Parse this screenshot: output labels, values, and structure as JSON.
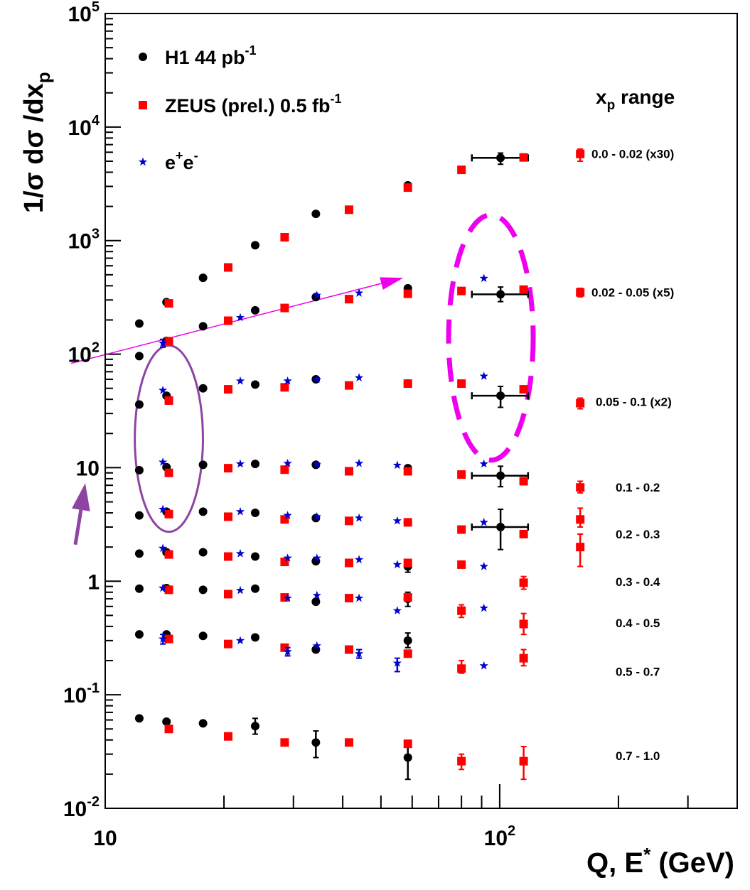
{
  "chart_data": {
    "type": "scatter",
    "log_x": true,
    "log_y": true,
    "xlim": [
      10,
      400
    ],
    "ylim": [
      0.01,
      100000
    ],
    "grid": false,
    "xlabel": {
      "main": "Q, E",
      "sup": "*",
      "unit": " (GeV)"
    },
    "ylabel": {
      "p1": "1/σ  dσ /dx",
      "sub": "p"
    },
    "x_ticks": [
      {
        "value": 10,
        "base": "10",
        "exp": ""
      },
      {
        "value": 100,
        "base": "10",
        "exp": "2"
      }
    ],
    "y_ticks": [
      {
        "value": 0.01,
        "base": "10",
        "exp": "-2"
      },
      {
        "value": 0.1,
        "base": "10",
        "exp": "-1"
      },
      {
        "value": 1,
        "base": "1",
        "exp": ""
      },
      {
        "value": 10,
        "base": "10",
        "exp": ""
      },
      {
        "value": 100,
        "base": "10",
        "exp": "2"
      },
      {
        "value": 1000,
        "base": "10",
        "exp": "3"
      },
      {
        "value": 10000,
        "base": "10",
        "exp": "4"
      },
      {
        "value": 100000,
        "base": "10",
        "exp": "5"
      }
    ],
    "legend": {
      "placement": "top-left",
      "entries": [
        {
          "label": "H1 44 pb",
          "sup": "-1",
          "marker": "circle",
          "color": "#000000"
        },
        {
          "label": "ZEUS (prel.) 0.5 fb",
          "sup": "-1",
          "marker": "square",
          "color": "#ff0000"
        },
        {
          "label": "e",
          "sup": "+",
          "label2": "e",
          "sup2": "-",
          "marker": "star",
          "color": "#0000cc"
        }
      ]
    },
    "range_title": {
      "main": "x",
      "sub": "p",
      "rest": " range"
    },
    "ranges": [
      {
        "label": "0.0 - 0.02 (x30)",
        "y": 5800
      },
      {
        "label": "0.02 - 0.05 (x5)",
        "y": 350
      },
      {
        "label": "0.05 - 0.1 (x2)",
        "y": 38
      },
      {
        "label": "0.1 - 0.2",
        "y": 6.7
      },
      {
        "label": "0.2 - 0.3",
        "y": 2.6
      },
      {
        "label": "0.3 - 0.4",
        "y": 0.99
      },
      {
        "label": "0.4 - 0.5",
        "y": 0.43
      },
      {
        "label": "0.5 - 0.7",
        "y": 0.16
      },
      {
        "label": "0.7 - 1.0",
        "y": 0.029
      }
    ],
    "series": [
      {
        "name": "H1 44 pb-1",
        "marker": "circle",
        "color": "#000000",
        "points": [
          {
            "x": 12.2,
            "y": 186
          },
          {
            "x": 14.3,
            "y": 287
          },
          {
            "x": 17.7,
            "y": 470
          },
          {
            "x": 24.0,
            "y": 910
          },
          {
            "x": 34.2,
            "y": 1720
          },
          {
            "x": 58.5,
            "y": 3070
          },
          {
            "x": 100.5,
            "y": 5350,
            "xerr": [
              85,
              118
            ],
            "yerr": [
              4700,
              5900
            ]
          },
          {
            "x": 12.2,
            "y": 96
          },
          {
            "x": 14.3,
            "y": 131
          },
          {
            "x": 17.7,
            "y": 176
          },
          {
            "x": 24.0,
            "y": 243
          },
          {
            "x": 34.2,
            "y": 318
          },
          {
            "x": 58.5,
            "y": 380
          },
          {
            "x": 100.5,
            "y": 336,
            "xerr": [
              85,
              118
            ],
            "yerr": [
              290,
              390
            ]
          },
          {
            "x": 12.2,
            "y": 36
          },
          {
            "x": 14.3,
            "y": 43
          },
          {
            "x": 17.7,
            "y": 50
          },
          {
            "x": 24.0,
            "y": 54
          },
          {
            "x": 34.2,
            "y": 60
          },
          {
            "x": 58.5,
            "y": 55
          },
          {
            "x": 100.5,
            "y": 43,
            "xerr": [
              85,
              118
            ],
            "yerr": [
              34,
              52
            ]
          },
          {
            "x": 12.2,
            "y": 9.5
          },
          {
            "x": 14.3,
            "y": 10.1
          },
          {
            "x": 17.7,
            "y": 10.6
          },
          {
            "x": 24.0,
            "y": 10.8
          },
          {
            "x": 34.2,
            "y": 10.6
          },
          {
            "x": 58.5,
            "y": 9.9
          },
          {
            "x": 100.5,
            "y": 8.5,
            "xerr": [
              85,
              118
            ],
            "yerr": [
              6.8,
              10.3
            ]
          },
          {
            "x": 12.2,
            "y": 3.8
          },
          {
            "x": 14.3,
            "y": 4.1
          },
          {
            "x": 17.7,
            "y": 4.1
          },
          {
            "x": 24.0,
            "y": 4.0
          },
          {
            "x": 34.2,
            "y": 3.6
          },
          {
            "x": 58.5,
            "y": 3.3
          },
          {
            "x": 100.5,
            "y": 3.0,
            "xerr": [
              85,
              118
            ],
            "yerr": [
              1.9,
              4.3
            ]
          },
          {
            "x": 12.2,
            "y": 1.75
          },
          {
            "x": 14.3,
            "y": 1.8
          },
          {
            "x": 17.7,
            "y": 1.8
          },
          {
            "x": 24.0,
            "y": 1.65
          },
          {
            "x": 34.2,
            "y": 1.5
          },
          {
            "x": 58.5,
            "y": 1.35,
            "yerr": [
              1.2,
              1.5
            ]
          },
          {
            "x": 12.2,
            "y": 0.86
          },
          {
            "x": 14.3,
            "y": 0.87
          },
          {
            "x": 17.7,
            "y": 0.84
          },
          {
            "x": 24.0,
            "y": 0.86
          },
          {
            "x": 34.2,
            "y": 0.66
          },
          {
            "x": 58.5,
            "y": 0.7,
            "yerr": [
              0.6,
              0.8
            ]
          },
          {
            "x": 12.2,
            "y": 0.34
          },
          {
            "x": 14.3,
            "y": 0.34
          },
          {
            "x": 17.7,
            "y": 0.33
          },
          {
            "x": 24.0,
            "y": 0.32
          },
          {
            "x": 34.2,
            "y": 0.25
          },
          {
            "x": 58.5,
            "y": 0.3,
            "yerr": [
              0.26,
              0.35
            ]
          },
          {
            "x": 12.2,
            "y": 0.062
          },
          {
            "x": 14.3,
            "y": 0.058
          },
          {
            "x": 17.7,
            "y": 0.056
          },
          {
            "x": 24.0,
            "y": 0.053,
            "yerr": [
              0.045,
              0.062
            ]
          },
          {
            "x": 34.2,
            "y": 0.038,
            "yerr": [
              0.028,
              0.048
            ]
          },
          {
            "x": 58.5,
            "y": 0.028,
            "yerr": [
              0.018,
              0.037
            ]
          }
        ]
      },
      {
        "name": "ZEUS (prel.) 0.5 fb-1",
        "marker": "square",
        "color": "#ff0000",
        "points": [
          {
            "x": 14.5,
            "y": 280
          },
          {
            "x": 20.5,
            "y": 580
          },
          {
            "x": 28.5,
            "y": 1070
          },
          {
            "x": 41.5,
            "y": 1870
          },
          {
            "x": 58.5,
            "y": 2930
          },
          {
            "x": 80,
            "y": 4200
          },
          {
            "x": 115,
            "y": 5400
          },
          {
            "x": 160,
            "y": 5800,
            "yerr": [
              5000,
              6400
            ]
          },
          {
            "x": 14.5,
            "y": 130
          },
          {
            "x": 20.5,
            "y": 197
          },
          {
            "x": 28.5,
            "y": 255
          },
          {
            "x": 41.5,
            "y": 305
          },
          {
            "x": 58.5,
            "y": 340
          },
          {
            "x": 80,
            "y": 360
          },
          {
            "x": 115,
            "y": 370
          },
          {
            "x": 160,
            "y": 350,
            "yerr": [
              320,
              380
            ]
          },
          {
            "x": 14.5,
            "y": 39
          },
          {
            "x": 20.5,
            "y": 49
          },
          {
            "x": 28.5,
            "y": 51
          },
          {
            "x": 41.5,
            "y": 53
          },
          {
            "x": 58.5,
            "y": 55
          },
          {
            "x": 80,
            "y": 55
          },
          {
            "x": 115,
            "y": 49
          },
          {
            "x": 160,
            "y": 37,
            "yerr": [
              33,
              41
            ]
          },
          {
            "x": 14.5,
            "y": 9.0
          },
          {
            "x": 20.5,
            "y": 9.9
          },
          {
            "x": 28.5,
            "y": 9.6
          },
          {
            "x": 41.5,
            "y": 9.3
          },
          {
            "x": 58.5,
            "y": 9.3
          },
          {
            "x": 80,
            "y": 8.7
          },
          {
            "x": 115,
            "y": 7.6
          },
          {
            "x": 160,
            "y": 6.7,
            "yerr": [
              6.0,
              7.6
            ]
          },
          {
            "x": 14.5,
            "y": 3.9
          },
          {
            "x": 20.5,
            "y": 3.7
          },
          {
            "x": 28.5,
            "y": 3.5
          },
          {
            "x": 41.5,
            "y": 3.4
          },
          {
            "x": 58.5,
            "y": 3.3
          },
          {
            "x": 80,
            "y": 2.85
          },
          {
            "x": 115,
            "y": 2.6
          },
          {
            "x": 160,
            "y": 3.5,
            "yerr": [
              3.0,
              4.4
            ]
          },
          {
            "x": 14.5,
            "y": 1.72
          },
          {
            "x": 20.5,
            "y": 1.65
          },
          {
            "x": 28.5,
            "y": 1.48
          },
          {
            "x": 41.5,
            "y": 1.45
          },
          {
            "x": 58.5,
            "y": 1.45
          },
          {
            "x": 80,
            "y": 1.4
          },
          {
            "x": 160,
            "y": 2.0,
            "yerr": [
              1.35,
              2.6
            ]
          },
          {
            "x": 14.5,
            "y": 0.84
          },
          {
            "x": 20.5,
            "y": 0.77
          },
          {
            "x": 28.5,
            "y": 0.72
          },
          {
            "x": 41.5,
            "y": 0.71
          },
          {
            "x": 58.5,
            "y": 0.72
          },
          {
            "x": 80,
            "y": 0.55,
            "yerr": [
              0.48,
              0.62
            ]
          },
          {
            "x": 115,
            "y": 0.97,
            "yerr": [
              0.85,
              1.1
            ]
          },
          {
            "x": 14.5,
            "y": 0.31
          },
          {
            "x": 20.5,
            "y": 0.28
          },
          {
            "x": 28.5,
            "y": 0.26
          },
          {
            "x": 41.5,
            "y": 0.25
          },
          {
            "x": 58.5,
            "y": 0.23
          },
          {
            "x": 80,
            "y": 0.17,
            "yerr": [
              0.155,
              0.2
            ]
          },
          {
            "x": 115,
            "y": 0.42,
            "yerr": [
              0.34,
              0.52
            ]
          },
          {
            "x": 115,
            "y": 0.21,
            "yerr": [
              0.18,
              0.25
            ]
          },
          {
            "x": 14.5,
            "y": 0.05
          },
          {
            "x": 20.5,
            "y": 0.043
          },
          {
            "x": 28.5,
            "y": 0.038
          },
          {
            "x": 41.5,
            "y": 0.038
          },
          {
            "x": 58.5,
            "y": 0.037
          },
          {
            "x": 80,
            "y": 0.026,
            "yerr": [
              0.022,
              0.03
            ]
          },
          {
            "x": 115,
            "y": 0.026,
            "yerr": [
              0.018,
              0.035
            ]
          }
        ]
      },
      {
        "name": "e+e-",
        "marker": "star",
        "color": "#0000cc",
        "points": [
          {
            "x": 91.2,
            "y": 465
          },
          {
            "x": 91.2,
            "y": 64
          },
          {
            "x": 91.2,
            "y": 10.8
          },
          {
            "x": 91.2,
            "y": 3.3
          },
          {
            "x": 91.2,
            "y": 1.35
          },
          {
            "x": 91.2,
            "y": 0.58
          },
          {
            "x": 91.2,
            "y": 0.18
          },
          {
            "x": 14.0,
            "y": 125,
            "yerr": [
              115,
              135
            ]
          },
          {
            "x": 22.0,
            "y": 210
          },
          {
            "x": 34.4,
            "y": 330
          },
          {
            "x": 44.0,
            "y": 345
          },
          {
            "x": 14.0,
            "y": 48
          },
          {
            "x": 22.0,
            "y": 58
          },
          {
            "x": 29.0,
            "y": 58
          },
          {
            "x": 34.4,
            "y": 60
          },
          {
            "x": 44.0,
            "y": 62
          },
          {
            "x": 14.0,
            "y": 11.2
          },
          {
            "x": 22.0,
            "y": 10.8
          },
          {
            "x": 29.0,
            "y": 10.9
          },
          {
            "x": 34.4,
            "y": 10.7
          },
          {
            "x": 44.0,
            "y": 10.9
          },
          {
            "x": 55.0,
            "y": 10.5
          },
          {
            "x": 14.0,
            "y": 4.3
          },
          {
            "x": 22.0,
            "y": 4.1
          },
          {
            "x": 29.0,
            "y": 3.8
          },
          {
            "x": 34.4,
            "y": 3.7
          },
          {
            "x": 44.0,
            "y": 3.6
          },
          {
            "x": 55.0,
            "y": 3.4
          },
          {
            "x": 14.0,
            "y": 1.95
          },
          {
            "x": 22.0,
            "y": 1.75
          },
          {
            "x": 29.0,
            "y": 1.6
          },
          {
            "x": 34.4,
            "y": 1.6
          },
          {
            "x": 44.0,
            "y": 1.55
          },
          {
            "x": 55.0,
            "y": 1.4
          },
          {
            "x": 14.0,
            "y": 0.87
          },
          {
            "x": 22.0,
            "y": 0.83
          },
          {
            "x": 29.0,
            "y": 0.71
          },
          {
            "x": 34.4,
            "y": 0.75
          },
          {
            "x": 44.0,
            "y": 0.71
          },
          {
            "x": 55.0,
            "y": 0.55
          },
          {
            "x": 14.0,
            "y": 0.31,
            "yerr": [
              0.28,
              0.34
            ]
          },
          {
            "x": 22.0,
            "y": 0.3
          },
          {
            "x": 29.0,
            "y": 0.24,
            "yerr": [
              0.22,
              0.26
            ]
          },
          {
            "x": 34.4,
            "y": 0.27
          },
          {
            "x": 44.0,
            "y": 0.23,
            "yerr": [
              0.21,
              0.25
            ]
          },
          {
            "x": 55.0,
            "y": 0.19,
            "yerr": [
              0.16,
              0.21
            ]
          }
        ]
      }
    ],
    "annotations": [
      {
        "kind": "arrow",
        "color": "#ee00ee",
        "from": [
          8.2,
          83
        ],
        "to": [
          57,
          470
        ]
      },
      {
        "kind": "arrow",
        "color": "#8e44a3",
        "from": [
          8.4,
          2.1
        ],
        "to": [
          8.9,
          7.3
        ]
      },
      {
        "kind": "ellipse",
        "color": "#8e44a3",
        "dashed": false,
        "center": [
          14.5,
          18
        ],
        "rx_factor": 1.22,
        "ry_decades": 0.82
      },
      {
        "kind": "ellipse",
        "color": "#ee00ee",
        "dashed": true,
        "center": [
          95,
          140
        ],
        "rx_factor": 1.28,
        "ry_decades": 1.08
      }
    ]
  }
}
